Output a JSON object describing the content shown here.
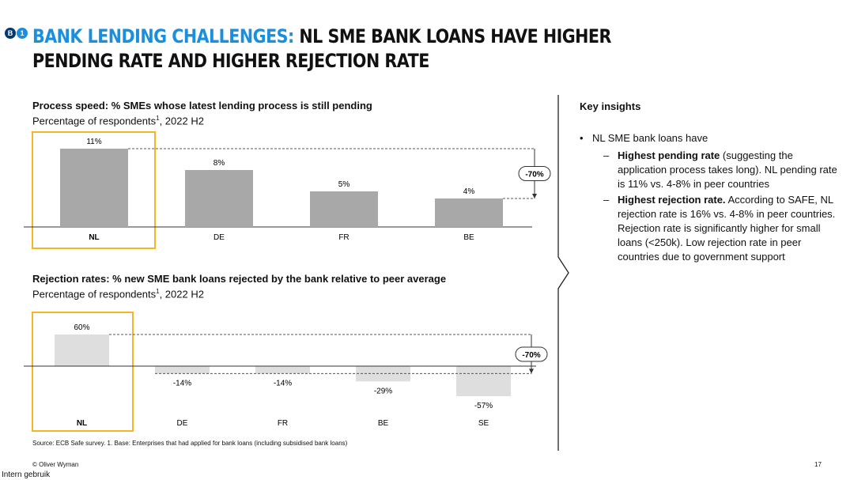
{
  "badges": [
    {
      "label": "B",
      "color": "#003a70"
    },
    {
      "label": "1",
      "color": "#1a8fe0"
    }
  ],
  "title": {
    "highlight": "BANK LENDING CHALLENGES:",
    "rest": " NL SME BANK LOANS HAVE HIGHER PENDING RATE AND HIGHER REJECTION RATE"
  },
  "colors": {
    "bar": "#a8a8a8",
    "bar_light": "#dededf",
    "highlight_box": "#f5b524",
    "title_accent": "#1a8fe0"
  },
  "chart_data": [
    {
      "type": "bar",
      "title": "Process speed: % SMEs whose  latest lending process is still pending",
      "subtitle": "Percentage of respondents",
      "subtitle_sup": "1",
      "subtitle_tail": ", 2022 H2",
      "categories": [
        "NL",
        "DE",
        "FR",
        "BE"
      ],
      "values": [
        11,
        8,
        5,
        4
      ],
      "labels": [
        "11%",
        "8%",
        "5%",
        "4%"
      ],
      "highlight": "NL",
      "annotation": "-70%",
      "ylim": [
        0,
        11
      ]
    },
    {
      "type": "bar",
      "title": "Rejection rates: % new SME bank loans rejected by the bank relative to peer average",
      "subtitle": "Percentage of respondents",
      "subtitle_sup": "1",
      "subtitle_tail": ", 2022 H2",
      "categories": [
        "NL",
        "DE",
        "FR",
        "BE",
        "SE"
      ],
      "values": [
        60,
        -14,
        -14,
        -29,
        -57
      ],
      "labels": [
        "60%",
        "-14%",
        "-14%",
        "-29%",
        "-57%"
      ],
      "highlight": "NL",
      "annotation": "-70%",
      "ylim": [
        -57,
        60
      ]
    }
  ],
  "insights": {
    "heading": "Key insights",
    "bullet": "NL SME bank loans have",
    "sub1_bold": "Highest pending rate",
    "sub1_rest": " (suggesting the application process takes long). NL pending rate is 11% vs. 4-8% in peer countries",
    "sub2_bold": "Highest rejection rate.",
    "sub2_rest": " According to SAFE, NL rejection rate is 16% vs. 4-8% in peer countries. Rejection rate is significantly higher for small loans (<250k). Low rejection rate in peer countries due to government support"
  },
  "footer": {
    "source": "Source: ECB Safe survey. 1. Base: Enterprises that had applied for bank loans (including subsidised bank loans)",
    "copyright": "© Oliver Wyman",
    "page": "17",
    "classification": "Intern gebruik"
  }
}
